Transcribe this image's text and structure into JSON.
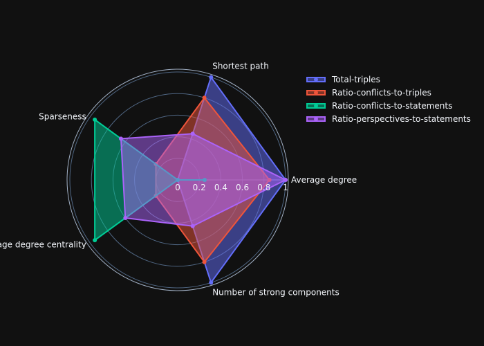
{
  "chart_data": {
    "type": "radar",
    "axes": [
      "Average degree",
      "Shortest path",
      "Sparseness",
      "Average degree centrality",
      "Number of strong components"
    ],
    "radial_range": [
      0,
      1
    ],
    "radial_ticks": [
      "0",
      "0.2",
      "0.4",
      "0.6",
      "0.8",
      "1"
    ],
    "series": [
      {
        "name": "Total-triples",
        "color": "#636efa",
        "values": [
          1.0,
          1.0,
          0.0,
          0.0,
          1.0
        ]
      },
      {
        "name": "Ratio-conflicts-to-triples",
        "color": "#ef553b",
        "values": [
          0.85,
          0.8,
          0.25,
          0.25,
          0.8
        ]
      },
      {
        "name": "Ratio-conflicts-to-statements",
        "color": "#00cc96",
        "values": [
          0.25,
          0.0,
          0.95,
          0.95,
          0.0
        ]
      },
      {
        "name": "Ratio-perspectives-to-statements",
        "color": "#ab63fa",
        "values": [
          1.0,
          0.45,
          0.65,
          0.6,
          0.45
        ]
      }
    ],
    "legend_position": "top-right"
  }
}
